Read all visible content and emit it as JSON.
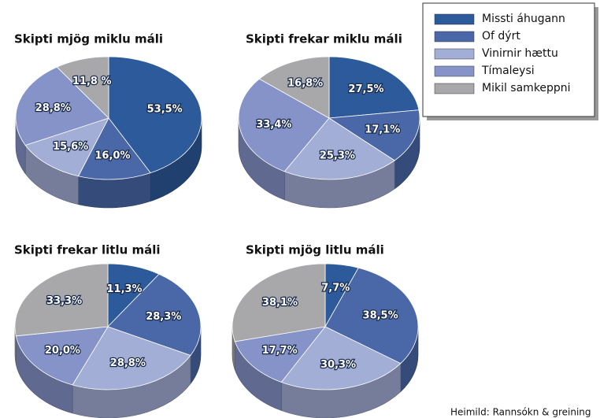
{
  "chart_data": [
    {
      "type": "pie",
      "title": "Skipti mjög miklu máli",
      "categories": [
        "Missti áhugann",
        "Of dýrt",
        "Vinirnir hættu",
        "Tímaleysi",
        "Mikil samkeppni"
      ],
      "colors": [
        "#2d5a9a",
        "#4a68a8",
        "#a3aed6",
        "#8593c8",
        "#a8a8aa"
      ],
      "values": [
        53.5,
        16.0,
        15.6,
        28.8,
        11.8
      ],
      "value_labels": [
        "53,5%",
        "16,0%",
        "15,6%",
        "28,8%",
        "11,8 %"
      ]
    },
    {
      "type": "pie",
      "title": "Skipti frekar miklu máli",
      "categories": [
        "Missti áhugann",
        "Of dýrt",
        "Vinirnir hættu",
        "Tímaleysi",
        "Mikil samkeppni"
      ],
      "colors": [
        "#2d5a9a",
        "#4a68a8",
        "#a3aed6",
        "#8593c8",
        "#a8a8aa"
      ],
      "values": [
        27.5,
        17.1,
        25.3,
        33.4,
        16.8
      ],
      "value_labels": [
        "27,5%",
        "17,1%",
        "25,3%",
        "33,4%",
        "16,8%"
      ]
    },
    {
      "type": "pie",
      "title": "Skipti frekar litlu máli",
      "categories": [
        "Missti áhugann",
        "Of dýrt",
        "Vinirnir hættu",
        "Tímaleysi",
        "Mikil samkeppni"
      ],
      "colors": [
        "#2d5a9a",
        "#4a68a8",
        "#a3aed6",
        "#8593c8",
        "#a8a8aa"
      ],
      "values": [
        11.3,
        28.3,
        28.8,
        20.0,
        33.3
      ],
      "value_labels": [
        "11,3%",
        "28,3%",
        "28,8%",
        "20,0%",
        "33,3%"
      ]
    },
    {
      "type": "pie",
      "title": "Skipti mjög litlu máli",
      "categories": [
        "Missti áhugann",
        "Of dýrt",
        "Vinirnir hættu",
        "Tímaleysi",
        "Mikil samkeppni"
      ],
      "colors": [
        "#2d5a9a",
        "#4a68a8",
        "#a3aed6",
        "#8593c8",
        "#a8a8aa"
      ],
      "values": [
        7.7,
        38.5,
        30.3,
        17.7,
        38.1
      ],
      "value_labels": [
        "7,7%",
        "38,5%",
        "30,3%",
        "17,7%",
        "38,1%"
      ]
    }
  ],
  "source": "Heimild: Rannsókn & greining"
}
